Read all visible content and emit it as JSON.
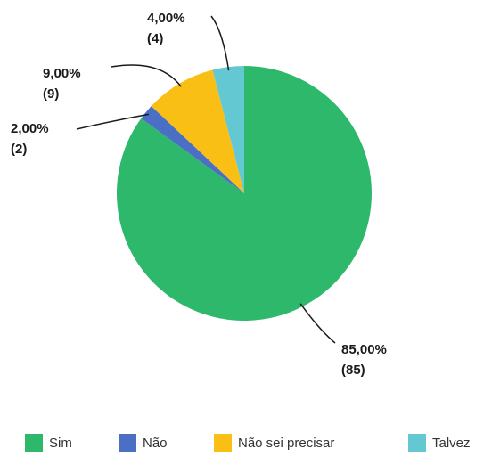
{
  "chart_data": {
    "type": "pie",
    "categories": [
      "Sim",
      "Não",
      "Não sei precisar",
      "Talvez"
    ],
    "values": [
      85,
      2,
      9,
      4
    ],
    "value_labels": [
      "85,00%",
      "2,00%",
      "9,00%",
      "4,00%"
    ],
    "count_labels": [
      "(85)",
      "(2)",
      "(9)",
      "(4)"
    ],
    "colors": [
      "#2db86b",
      "#4a6fc4",
      "#f9bf15",
      "#63c8d2"
    ],
    "legend": "bottom"
  }
}
